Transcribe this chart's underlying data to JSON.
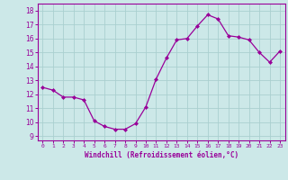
{
  "x": [
    0,
    1,
    2,
    3,
    4,
    5,
    6,
    7,
    8,
    9,
    10,
    11,
    12,
    13,
    14,
    15,
    16,
    17,
    18,
    19,
    20,
    21,
    22,
    23
  ],
  "y": [
    12.5,
    12.3,
    11.8,
    11.8,
    11.6,
    10.1,
    9.7,
    9.5,
    9.5,
    9.9,
    11.1,
    13.1,
    14.6,
    15.9,
    16.0,
    16.9,
    17.7,
    17.4,
    16.2,
    16.1,
    15.9,
    15.0,
    14.3,
    15.1
  ],
  "line_color": "#990099",
  "marker": "D",
  "marker_size": 2.0,
  "bg_color": "#cce8e8",
  "grid_color": "#aacfcf",
  "xlabel": "Windchill (Refroidissement éolien,°C)",
  "xlabel_color": "#990099",
  "ylabel_ticks": [
    9,
    10,
    11,
    12,
    13,
    14,
    15,
    16,
    17,
    18
  ],
  "xlim": [
    -0.5,
    23.5
  ],
  "ylim": [
    8.7,
    18.5
  ],
  "xtick_labels": [
    "0",
    "1",
    "2",
    "3",
    "4",
    "5",
    "6",
    "7",
    "8",
    "9",
    "10",
    "11",
    "12",
    "13",
    "14",
    "15",
    "16",
    "17",
    "18",
    "19",
    "20",
    "21",
    "22",
    "23"
  ],
  "spine_color": "#990099",
  "tick_color": "#990099"
}
